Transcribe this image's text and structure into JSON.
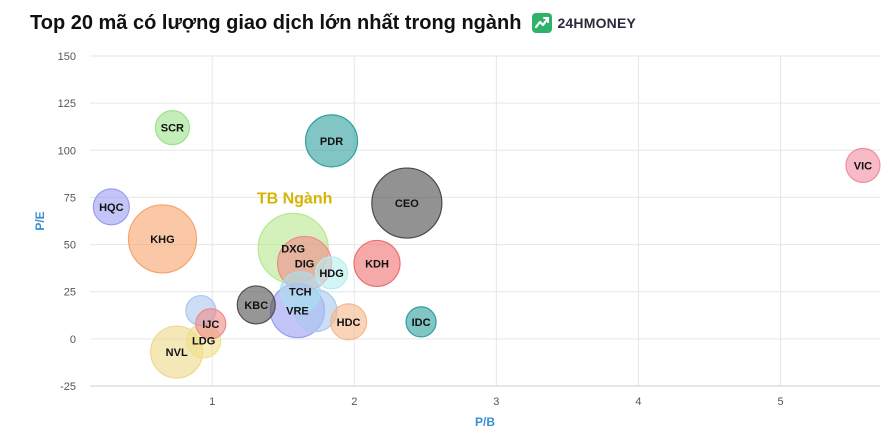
{
  "header": {
    "title": "Top 20 mã có lượng giao dịch lớn nhất trong ngành",
    "brand": "24HMONEY",
    "brand_color": "#2fb36b"
  },
  "chart_data": {
    "type": "bubble",
    "xlabel": "P/B",
    "ylabel": "P/E",
    "xlim": [
      0.14,
      5.7
    ],
    "ylim": [
      -25,
      150
    ],
    "x_ticks": [
      1,
      2,
      3,
      4,
      5
    ],
    "y_ticks": [
      -25,
      0,
      25,
      50,
      75,
      100,
      125,
      150
    ],
    "grid": true,
    "annotation": {
      "text": "TB Ngành",
      "x": 1.58,
      "y": 75,
      "color": "#d6b400"
    },
    "points": [
      {
        "label": "SCR",
        "x": 0.72,
        "y": 112,
        "size": 17,
        "color": "#9be28a"
      },
      {
        "label": "PDR",
        "x": 1.84,
        "y": 105,
        "size": 26,
        "color": "#2f9e9e"
      },
      {
        "label": "VIC",
        "x": 5.58,
        "y": 92,
        "size": 17,
        "color": "#f08da0"
      },
      {
        "label": "CEO",
        "x": 2.37,
        "y": 72,
        "size": 35,
        "color": "#4a4a4a"
      },
      {
        "label": "HQC",
        "x": 0.29,
        "y": 70,
        "size": 18,
        "color": "#9a9ef0"
      },
      {
        "label": "KHG",
        "x": 0.65,
        "y": 53,
        "size": 34,
        "color": "#f6a36c"
      },
      {
        "label": "DXG",
        "x": 1.57,
        "y": 48,
        "size": 35,
        "color": "#b8e890"
      },
      {
        "label": "DIG",
        "x": 1.65,
        "y": 40,
        "size": 27,
        "color": "#f08a8a"
      },
      {
        "label": "KDH",
        "x": 2.16,
        "y": 40,
        "size": 23,
        "color": "#ee7070"
      },
      {
        "label": "HDG",
        "x": 1.84,
        "y": 35,
        "size": 16,
        "color": "#b8eef0"
      },
      {
        "label": "TCH",
        "x": 1.62,
        "y": 25,
        "size": 20,
        "color": "#a8dff0"
      },
      {
        "label": "KBC",
        "x": 1.31,
        "y": 18,
        "size": 19,
        "color": "#505050"
      },
      {
        "label": "",
        "x": 0.92,
        "y": 15,
        "size": 15,
        "color": "#a8c8f0"
      },
      {
        "label": "",
        "x": 1.73,
        "y": 15,
        "size": 21,
        "color": "#a8c8f0"
      },
      {
        "label": "VRE",
        "x": 1.6,
        "y": 15,
        "size": 27,
        "color": "#9a9ef0"
      },
      {
        "label": "HDC",
        "x": 1.96,
        "y": 9,
        "size": 18,
        "color": "#f6b88a"
      },
      {
        "label": "IDC",
        "x": 2.47,
        "y": 9,
        "size": 15,
        "color": "#2f9e9e"
      },
      {
        "label": "IJC",
        "x": 0.99,
        "y": 8,
        "size": 15,
        "color": "#f08a8a"
      },
      {
        "label": "LDG",
        "x": 0.94,
        "y": -1,
        "size": 17,
        "color": "#f0e08a"
      },
      {
        "label": "NVL",
        "x": 0.75,
        "y": -7,
        "size": 26,
        "color": "#ecd98a"
      }
    ]
  }
}
